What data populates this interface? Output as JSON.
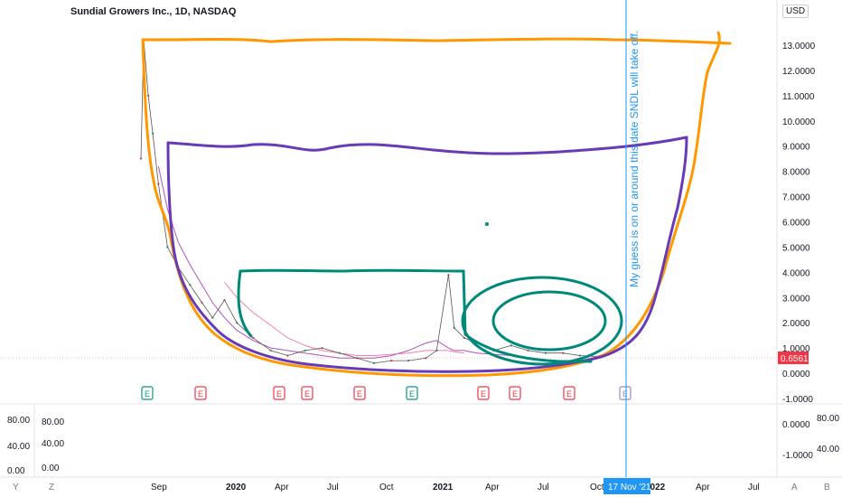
{
  "header": {
    "title": "Sundial Growers Inc., 1D, NASDAQ",
    "currency": "USD"
  },
  "annotation": {
    "text": "My guess is on or around this date SNDL will take off.",
    "date_label": "17 Nov '21"
  },
  "price_scale": {
    "ticks": [
      "13.0000",
      "12.0000",
      "11.0000",
      "10.0000",
      "9.0000",
      "8.0000",
      "7.0000",
      "6.0000",
      "5.0000",
      "4.0000",
      "3.0000",
      "2.0000",
      "1.0000",
      "0.0000",
      "-1.0000"
    ],
    "current_price": "0.6561",
    "current_color": "#f23645"
  },
  "indicator_scale": {
    "left_ticks": [
      "80.00",
      "40.00",
      "0.00"
    ],
    "left2_ticks": [
      "80.00",
      "40.00",
      "0.00"
    ],
    "right_ticks": [
      "0.0000",
      "-1.0000"
    ],
    "right2_ticks": [
      "80.00",
      "40.00"
    ]
  },
  "time_axis": {
    "labels": [
      "Sep",
      "2020",
      "Apr",
      "Jul",
      "Oct",
      "2021",
      "Apr",
      "Jul",
      "Oct",
      "2022",
      "Apr",
      "Jul"
    ],
    "bold": [
      "2020",
      "2021",
      "2022"
    ]
  },
  "bottom_buttons": [
    "Y",
    "Z",
    "A",
    "B"
  ],
  "events": [
    {
      "label": "E",
      "color": "#089981"
    },
    {
      "label": "E",
      "color": "#f23645"
    },
    {
      "label": "E",
      "color": "#f23645"
    },
    {
      "label": "E",
      "color": "#f23645"
    },
    {
      "label": "E",
      "color": "#f23645"
    },
    {
      "label": "E",
      "color": "#089981"
    },
    {
      "label": "E",
      "color": "#f23645"
    },
    {
      "label": "E",
      "color": "#f23645"
    },
    {
      "label": "E",
      "color": "#f23645"
    },
    {
      "label": "E",
      "color": "#9c88c4"
    }
  ],
  "chart_data": {
    "type": "line",
    "title": "Sundial Growers Inc., 1D, NASDAQ",
    "ylabel": "USD",
    "ylim": [
      -1,
      13.5
    ],
    "x": [
      "2019-08-15",
      "2019-08-20",
      "2019-08-28",
      "2019-09-05",
      "2019-09-15",
      "2019-10-01",
      "2019-10-20",
      "2019-11-10",
      "2019-12-01",
      "2019-12-20",
      "2020-01-10",
      "2020-02-01",
      "2020-03-01",
      "2020-04-01",
      "2020-05-01",
      "2020-06-01",
      "2020-07-01",
      "2020-08-01",
      "2020-09-01",
      "2020-10-01",
      "2020-11-01",
      "2020-12-01",
      "2021-01-01",
      "2021-01-20",
      "2021-02-10",
      "2021-02-20",
      "2021-03-10",
      "2021-04-01",
      "2021-05-01",
      "2021-06-01",
      "2021-07-01",
      "2021-08-01",
      "2021-09-01",
      "2021-10-01",
      "2021-11-01"
    ],
    "series": [
      {
        "values": [
          8.5,
          13.2,
          11.0,
          9.5,
          7.5,
          5.0,
          4.2,
          3.5,
          2.8,
          2.2,
          2.9,
          2.0,
          1.4,
          0.9,
          0.7,
          0.9,
          1.0,
          0.8,
          0.6,
          0.4,
          0.5,
          0.5,
          0.6,
          0.9,
          3.9,
          1.8,
          1.4,
          1.2,
          0.9,
          1.1,
          0.9,
          0.8,
          0.8,
          0.7,
          0.66
        ]
      }
    ],
    "moving_averages": [
      {
        "color": "#9c27b0",
        "values": [
          8.2,
          6.5,
          5.2,
          4.3,
          3.5,
          2.8,
          2.2,
          1.7,
          1.3,
          1.0,
          0.9,
          0.8,
          0.7,
          0.6,
          0.6,
          0.6,
          0.7,
          0.9,
          1.2,
          1.3,
          1.0,
          0.9,
          0.9,
          0.8,
          0.75,
          0.7
        ]
      },
      {
        "color": "#f06292",
        "values": [
          3.6,
          3.0,
          2.4,
          1.9,
          1.4,
          1.1,
          0.9,
          0.8,
          0.7,
          0.7,
          0.75,
          0.8,
          0.9,
          0.9,
          0.9,
          0.85,
          0.8
        ]
      }
    ],
    "indicator": {
      "left_range": [
        0,
        80
      ],
      "right_range": [
        -1,
        0
      ]
    }
  }
}
